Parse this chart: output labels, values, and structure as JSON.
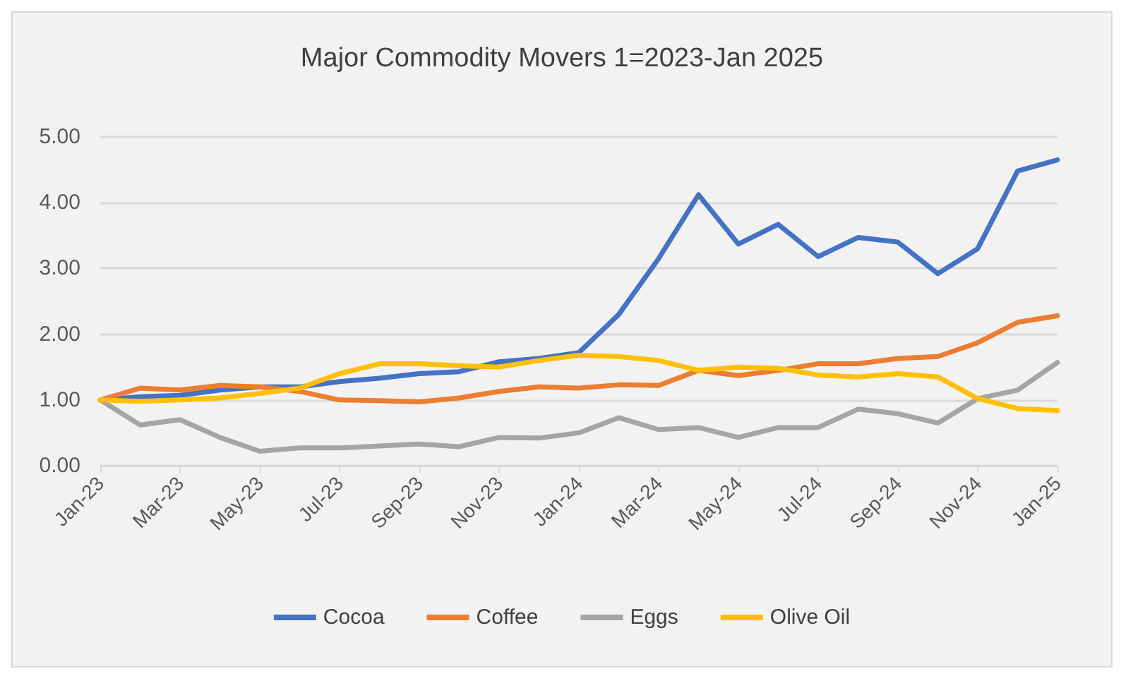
{
  "chart_data": {
    "type": "line",
    "title": "Major Commodity Movers 1=2023-Jan 2025",
    "categories": [
      "Jan-23",
      null,
      "Mar-23",
      null,
      "May-23",
      null,
      "Jul-23",
      null,
      "Sep-23",
      null,
      "Nov-23",
      null,
      "Jan-24",
      null,
      "Mar-24",
      null,
      "May-24",
      null,
      "Jul-24",
      null,
      "Sep-24",
      null,
      "Nov-24",
      null,
      "Jan-25"
    ],
    "series": [
      {
        "name": "Cocoa",
        "color": "#4472c4",
        "values": [
          1.0,
          1.05,
          1.07,
          1.15,
          1.2,
          1.2,
          1.28,
          1.33,
          1.4,
          1.43,
          1.58,
          1.63,
          1.72,
          2.3,
          3.15,
          4.12,
          3.37,
          3.67,
          3.18,
          3.47,
          3.4,
          2.92,
          3.3,
          4.48,
          4.65
        ]
      },
      {
        "name": "Coffee",
        "color": "#ed7d31",
        "values": [
          1.0,
          1.18,
          1.15,
          1.22,
          1.2,
          1.13,
          1.0,
          0.99,
          0.97,
          1.03,
          1.13,
          1.2,
          1.18,
          1.23,
          1.22,
          1.45,
          1.37,
          1.45,
          1.55,
          1.55,
          1.63,
          1.66,
          1.87,
          2.18,
          2.28
        ]
      },
      {
        "name": "Eggs",
        "color": "#a5a5a5",
        "values": [
          1.0,
          0.62,
          0.7,
          0.43,
          0.22,
          0.27,
          0.27,
          0.3,
          0.33,
          0.29,
          0.43,
          0.42,
          0.5,
          0.73,
          0.55,
          0.58,
          0.43,
          0.58,
          0.58,
          0.86,
          0.79,
          0.65,
          1.02,
          1.15,
          1.57
        ]
      },
      {
        "name": "Olive Oil",
        "color": "#ffc000",
        "values": [
          1.0,
          0.98,
          1.0,
          1.03,
          1.1,
          1.18,
          1.4,
          1.55,
          1.55,
          1.52,
          1.5,
          1.6,
          1.68,
          1.66,
          1.6,
          1.45,
          1.5,
          1.48,
          1.38,
          1.35,
          1.4,
          1.35,
          1.02,
          0.87,
          0.84
        ]
      }
    ],
    "ylim": [
      0,
      5
    ],
    "yticks": [
      {
        "value": 0,
        "label": "0.00"
      },
      {
        "value": 1,
        "label": "1.00"
      },
      {
        "value": 2,
        "label": "2.00"
      },
      {
        "value": 3,
        "label": "3.00"
      },
      {
        "value": 4,
        "label": "4.00"
      },
      {
        "value": 5,
        "label": "5.00"
      }
    ],
    "grid": "y",
    "legend": "bottom",
    "marker": "none",
    "line_style": "solid"
  }
}
